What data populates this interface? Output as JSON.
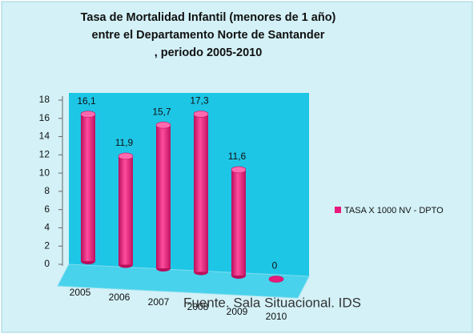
{
  "chart_data": {
    "type": "bar",
    "title": [
      "Tasa de Mortalidad Infantil (menores de 1 año)",
      "entre el Departamento Norte de Santander",
      ", periodo 2005-2010"
    ],
    "categories": [
      "2005",
      "2006",
      "2007",
      "2008",
      "2009",
      "2010"
    ],
    "series": [
      {
        "name": "TASA X 1000 NV - DPTO",
        "color": "#e8197a",
        "values": [
          16.1,
          11.9,
          15.7,
          17.3,
          11.6,
          0
        ],
        "value_labels": [
          "16,1",
          "11,9",
          "15,7",
          "17,3",
          "11,6",
          "0"
        ]
      }
    ],
    "ylim": [
      0,
      18
    ],
    "yticks": [
      0,
      2,
      4,
      6,
      8,
      10,
      12,
      14,
      16,
      18
    ],
    "legend": "right",
    "annotation": "Fuente. Sala Situacional. IDS"
  }
}
